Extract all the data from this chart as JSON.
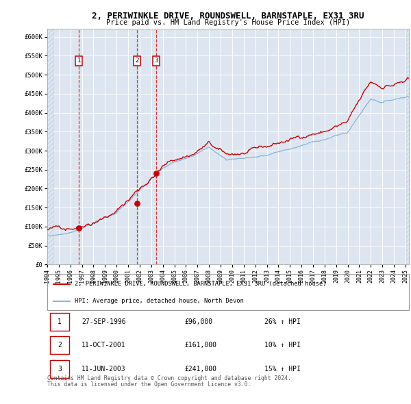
{
  "title": "2, PERIWINKLE DRIVE, ROUNDSWELL, BARNSTAPLE, EX31 3RU",
  "subtitle": "Price paid vs. HM Land Registry's House Price Index (HPI)",
  "legend_line1": "2, PERIWINKLE DRIVE, ROUNDSWELL, BARNSTAPLE, EX31 3RU (detached house)",
  "legend_line2": "HPI: Average price, detached house, North Devon",
  "footer_line1": "Contains HM Land Registry data © Crown copyright and database right 2024.",
  "footer_line2": "This data is licensed under the Open Government Licence v3.0.",
  "sales": [
    {
      "num": 1,
      "date": "27-SEP-1996",
      "price": 96000,
      "pct": "26%",
      "dir": "↑"
    },
    {
      "num": 2,
      "date": "11-OCT-2001",
      "price": 161000,
      "pct": "10%",
      "dir": "↑"
    },
    {
      "num": 3,
      "date": "11-JUN-2003",
      "price": 241000,
      "pct": "15%",
      "dir": "↑"
    }
  ],
  "sale_dates_decimal": [
    1996.74,
    2001.78,
    2003.44
  ],
  "sale_prices": [
    96000,
    161000,
    241000
  ],
  "ylim": [
    0,
    620000
  ],
  "xlim_start": 1994.0,
  "xlim_end": 2025.3,
  "yticks": [
    0,
    50000,
    100000,
    150000,
    200000,
    250000,
    300000,
    350000,
    400000,
    450000,
    500000,
    550000,
    600000
  ],
  "ytick_labels": [
    "£0",
    "£50K",
    "£100K",
    "£150K",
    "£200K",
    "£250K",
    "£300K",
    "£350K",
    "£400K",
    "£450K",
    "£500K",
    "£550K",
    "£600K"
  ],
  "xticks": [
    1994,
    1995,
    1996,
    1997,
    1998,
    1999,
    2000,
    2001,
    2002,
    2003,
    2004,
    2005,
    2006,
    2007,
    2008,
    2009,
    2010,
    2011,
    2012,
    2013,
    2014,
    2015,
    2016,
    2017,
    2018,
    2019,
    2020,
    2021,
    2022,
    2023,
    2024,
    2025
  ],
  "background_color": "#dde6f0",
  "grid_color": "#ffffff",
  "hpi_color": "#88b4d8",
  "price_color": "#cc0000",
  "marker_color": "#cc0000",
  "vline1_color": "#bbbbbb",
  "vline23_color": "#dd3333",
  "hatch_color": "#c8d4e4"
}
